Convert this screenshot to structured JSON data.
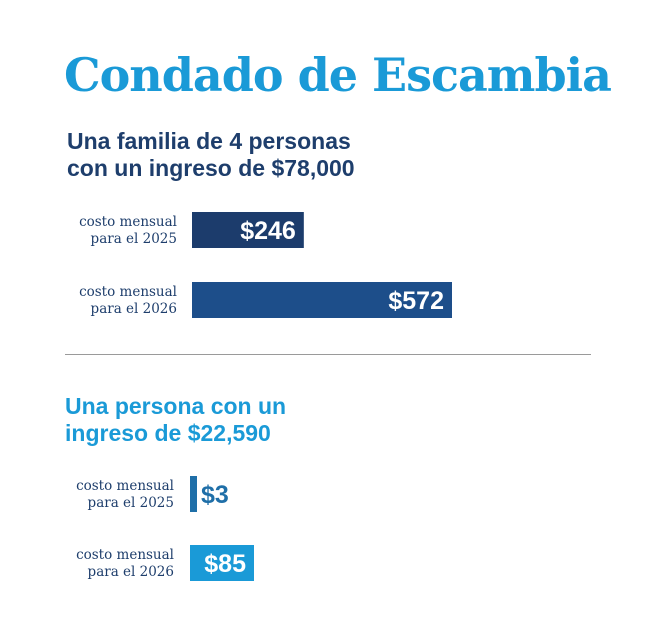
{
  "title": "Condado de Escambia",
  "chart_data": [
    {
      "type": "bar",
      "orientation": "horizontal",
      "title": "Una familia de 4 personas con un ingreso de $78,000",
      "title_lines": [
        "Una familia de 4 personas",
        "con un ingreso de $78,000"
      ],
      "categories": [
        [
          "costo mensual",
          "para el 2025"
        ],
        [
          "costo mensual",
          "para el 2026"
        ]
      ],
      "values": [
        246,
        572
      ],
      "value_labels": [
        "$246",
        "$572"
      ],
      "colors": [
        "#1c3c6c",
        "#1d4e8a"
      ],
      "title_color": "#1e3e6c",
      "label_color": "#ffffff"
    },
    {
      "type": "bar",
      "orientation": "horizontal",
      "title": "Una persona con un ingreso de $22,590",
      "title_lines": [
        "Una persona con un",
        "ingreso de $22,590"
      ],
      "categories": [
        [
          "costo mensual",
          "para el 2025"
        ],
        [
          "costo mensual",
          "para el 2026"
        ]
      ],
      "values": [
        3,
        85
      ],
      "value_labels": [
        "$3",
        "$85"
      ],
      "colors": [
        "#1f6fa8",
        "#1a9ad7"
      ],
      "title_color": "#1a9ad7",
      "label_color_inside": "#ffffff",
      "label_color_outside": "#1f6fa8"
    }
  ]
}
